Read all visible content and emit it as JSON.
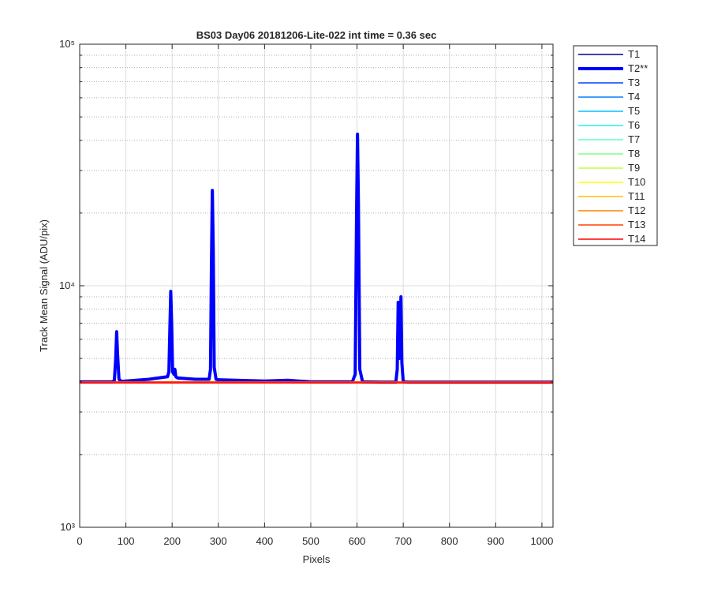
{
  "chart_data": {
    "type": "line",
    "title": "BS03 Day06 20181206-Lite-022 int time = 0.36 sec",
    "x_label": "Pixels",
    "y_label": "Track Mean Signal (ADU/pix)",
    "xlim": [
      0,
      1024
    ],
    "ylim": [
      1000,
      100000
    ],
    "y_scale": "log",
    "grid": true,
    "xticks": [
      0,
      100,
      200,
      300,
      400,
      500,
      600,
      700,
      800,
      900,
      1000
    ],
    "yticks": [
      {
        "value": 1000,
        "label": "10³"
      },
      {
        "value": 10000,
        "label": "10⁴"
      },
      {
        "value": 100000,
        "label": "10⁵"
      }
    ],
    "yminorticks": [
      2000,
      3000,
      4000,
      5000,
      6000,
      7000,
      8000,
      9000,
      20000,
      30000,
      40000,
      50000,
      60000,
      70000,
      80000,
      90000
    ],
    "legend": "outside-right",
    "x": [
      0,
      70,
      75,
      78,
      80,
      82,
      85,
      90,
      100,
      150,
      190,
      193,
      195,
      197,
      199,
      201,
      204,
      206,
      208,
      212,
      250,
      280,
      283,
      285,
      287,
      289,
      291,
      295,
      300,
      400,
      450,
      500,
      590,
      596,
      599,
      601,
      603,
      606,
      612,
      650,
      684,
      687,
      689,
      691,
      693,
      695,
      697,
      700,
      710,
      800,
      1024
    ],
    "series": [
      {
        "name": "T1",
        "color": "#00008f",
        "width": 1.5,
        "x": [
          0,
          1024
        ],
        "values": [
          4000,
          4000
        ]
      },
      {
        "name": "T2**",
        "color": "#0000ff",
        "width": 4,
        "values": [
          4000,
          4000,
          4050,
          5000,
          6450,
          5200,
          4100,
          4020,
          4030,
          4100,
          4200,
          4400,
          6500,
          9480,
          7000,
          4400,
          4300,
          4510,
          4200,
          4150,
          4100,
          4100,
          4500,
          12000,
          24800,
          14000,
          4600,
          4100,
          4080,
          4030,
          4060,
          4000,
          4000,
          4300,
          20000,
          42400,
          22000,
          4500,
          4000,
          3990,
          3990,
          4500,
          8540,
          5000,
          5500,
          9000,
          4800,
          4000,
          3990,
          3990,
          3990
        ]
      },
      {
        "name": "T3",
        "color": "#0040ff",
        "width": 1.5,
        "x": [
          0,
          1024
        ],
        "values": [
          4000,
          4000
        ]
      },
      {
        "name": "T4",
        "color": "#0080ff",
        "width": 1.5,
        "x": [
          0,
          1024
        ],
        "values": [
          4000,
          4000
        ]
      },
      {
        "name": "T5",
        "color": "#00c0ff",
        "width": 1.5,
        "x": [
          0,
          1024
        ],
        "values": [
          4000,
          4000
        ]
      },
      {
        "name": "T6",
        "color": "#20f0f0",
        "width": 1.5,
        "x": [
          0,
          1024
        ],
        "values": [
          4000,
          4000
        ]
      },
      {
        "name": "T7",
        "color": "#60ffc0",
        "width": 1.5,
        "x": [
          0,
          1024
        ],
        "values": [
          4000,
          4000
        ]
      },
      {
        "name": "T8",
        "color": "#80ff80",
        "width": 1.5,
        "x": [
          0,
          1024
        ],
        "values": [
          4000,
          4000
        ]
      },
      {
        "name": "T9",
        "color": "#c0ff40",
        "width": 1.5,
        "x": [
          0,
          1024
        ],
        "values": [
          4000,
          4000
        ]
      },
      {
        "name": "T10",
        "color": "#ffff00",
        "width": 1.5,
        "x": [
          0,
          1024
        ],
        "values": [
          4000,
          4000
        ]
      },
      {
        "name": "T11",
        "color": "#ffc000",
        "width": 1.5,
        "x": [
          0,
          1024
        ],
        "values": [
          4000,
          4000
        ]
      },
      {
        "name": "T12",
        "color": "#ff8000",
        "width": 1.5,
        "x": [
          0,
          1024
        ],
        "values": [
          4000,
          4000
        ]
      },
      {
        "name": "T13",
        "color": "#ff4000",
        "width": 1.5,
        "x": [
          0,
          1024
        ],
        "values": [
          4000,
          4000
        ]
      },
      {
        "name": "T14",
        "color": "#ff0000",
        "width": 1.5,
        "x": [
          0,
          1024
        ],
        "values": [
          3960,
          3960
        ]
      }
    ]
  }
}
